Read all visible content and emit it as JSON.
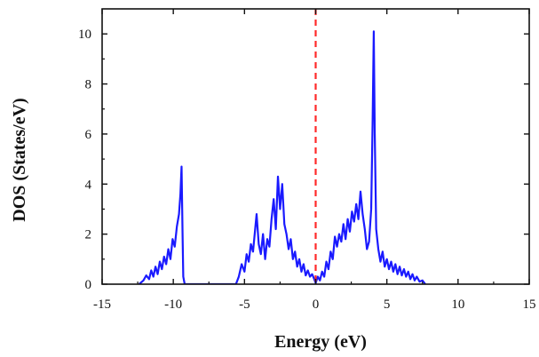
{
  "chart_data": {
    "type": "line",
    "title": "",
    "xlabel": "Energy (eV)",
    "ylabel": "DOS (States/eV)",
    "xlim": [
      -15,
      15
    ],
    "ylim": [
      0,
      11
    ],
    "xticks": [
      -15,
      -10,
      -5,
      0,
      5,
      10,
      15
    ],
    "yticks": [
      0,
      2,
      4,
      6,
      8,
      10
    ],
    "xtick_labels": [
      "-15",
      "-10",
      "-5",
      "0",
      "5",
      "10",
      "15"
    ],
    "ytick_labels": [
      "0",
      "2",
      "4",
      "6",
      "8",
      "10"
    ],
    "grid": false,
    "legend": "none",
    "fermi_level": {
      "x": 0,
      "color": "#ff2a2a",
      "style": "dashed"
    },
    "series": [
      {
        "color": "#1a1aff",
        "x": [
          -12.4,
          -12.1,
          -11.9,
          -11.7,
          -11.55,
          -11.4,
          -11.25,
          -11.1,
          -10.95,
          -10.8,
          -10.65,
          -10.5,
          -10.35,
          -10.2,
          -10.05,
          -9.9,
          -9.75,
          -9.6,
          -9.5,
          -9.42,
          -9.35,
          -9.3,
          -9.2,
          -5.6,
          -5.4,
          -5.2,
          -5.0,
          -4.85,
          -4.7,
          -4.55,
          -4.4,
          -4.25,
          -4.15,
          -4.0,
          -3.85,
          -3.7,
          -3.55,
          -3.4,
          -3.25,
          -3.1,
          -2.95,
          -2.8,
          -2.65,
          -2.5,
          -2.35,
          -2.2,
          -2.05,
          -1.9,
          -1.75,
          -1.6,
          -1.45,
          -1.3,
          -1.15,
          -1.0,
          -0.85,
          -0.7,
          -0.55,
          -0.4,
          -0.25,
          -0.1,
          0.0,
          0.15,
          0.3,
          0.45,
          0.6,
          0.75,
          0.9,
          1.05,
          1.2,
          1.35,
          1.5,
          1.65,
          1.8,
          1.95,
          2.1,
          2.25,
          2.4,
          2.55,
          2.7,
          2.85,
          3.0,
          3.15,
          3.3,
          3.45,
          3.6,
          3.75,
          3.9,
          4.0,
          4.08,
          4.15,
          4.25,
          4.4,
          4.55,
          4.7,
          4.85,
          5.0,
          5.15,
          5.3,
          5.45,
          5.6,
          5.75,
          5.9,
          6.05,
          6.2,
          6.35,
          6.5,
          6.65,
          6.8,
          6.95,
          7.1,
          7.3,
          7.5,
          7.7
        ],
        "y": [
          0.0,
          0.15,
          0.35,
          0.2,
          0.55,
          0.3,
          0.7,
          0.4,
          0.9,
          0.6,
          1.1,
          0.8,
          1.4,
          1.0,
          1.8,
          1.5,
          2.3,
          2.8,
          3.6,
          4.7,
          2.0,
          0.3,
          0.0,
          0.0,
          0.3,
          0.8,
          0.5,
          1.2,
          0.9,
          1.6,
          1.3,
          2.2,
          2.8,
          1.6,
          1.2,
          2.0,
          1.0,
          1.8,
          1.5,
          2.6,
          3.4,
          2.2,
          4.3,
          3.0,
          4.0,
          2.4,
          2.0,
          1.4,
          1.8,
          1.0,
          1.3,
          0.7,
          1.0,
          0.5,
          0.8,
          0.35,
          0.55,
          0.3,
          0.4,
          0.2,
          0.05,
          0.3,
          0.15,
          0.5,
          0.3,
          0.9,
          0.6,
          1.3,
          1.0,
          1.9,
          1.5,
          2.0,
          1.7,
          2.4,
          1.8,
          2.6,
          2.1,
          2.9,
          2.5,
          3.2,
          2.6,
          3.7,
          2.8,
          2.2,
          1.4,
          1.7,
          3.0,
          6.5,
          10.1,
          6.0,
          2.2,
          1.4,
          0.9,
          1.3,
          0.7,
          1.0,
          0.6,
          0.9,
          0.5,
          0.8,
          0.4,
          0.7,
          0.35,
          0.6,
          0.3,
          0.5,
          0.2,
          0.4,
          0.15,
          0.3,
          0.1,
          0.15,
          0.0
        ]
      }
    ]
  }
}
